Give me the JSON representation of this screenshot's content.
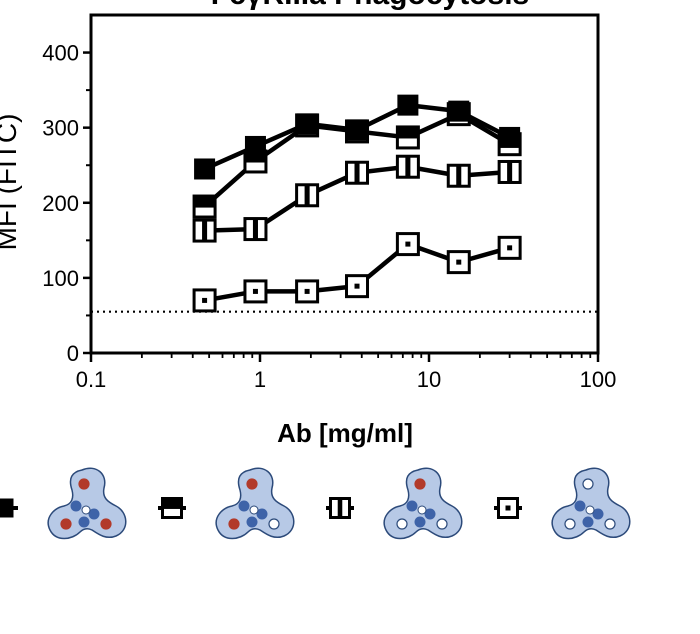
{
  "chart_data": {
    "type": "line",
    "title": "FcγRIIIa Phagocytosis",
    "xlabel": "Ab [mg/ml]",
    "ylabel": "MFI (FITC)",
    "x_scale": "log",
    "xlim": [
      0.1,
      100
    ],
    "ylim": [
      0,
      450
    ],
    "x_ticks": [
      0.1,
      1,
      10,
      100
    ],
    "x_tick_labels": [
      "0.1",
      "1",
      "10",
      "100"
    ],
    "y_ticks": [
      0,
      100,
      200,
      300,
      400
    ],
    "y_tick_labels": [
      "0",
      "100",
      "200",
      "300",
      "400"
    ],
    "baseline": 55,
    "grid": false,
    "series": [
      {
        "marker": "filled-square",
        "x": [
          0.47,
          0.94,
          1.9,
          3.75,
          7.5,
          15,
          30
        ],
        "y": [
          245,
          275,
          305,
          297,
          330,
          322,
          287
        ]
      },
      {
        "marker": "top-filled-square",
        "x": [
          0.47,
          0.94,
          1.9,
          3.75,
          7.5,
          15,
          30
        ],
        "y": [
          195,
          255,
          303,
          295,
          287,
          318,
          278
        ]
      },
      {
        "marker": "middle-filled-square",
        "x": [
          0.47,
          0.94,
          1.9,
          3.75,
          7.5,
          15,
          30
        ],
        "y": [
          163,
          165,
          210,
          240,
          248,
          236,
          241
        ]
      },
      {
        "marker": "open-square",
        "x": [
          0.47,
          0.94,
          1.9,
          3.75,
          7.5,
          15,
          30
        ],
        "y": [
          70,
          82,
          82,
          89,
          145,
          121,
          140
        ]
      }
    ],
    "legend": {
      "placement": "bottom",
      "entries": [
        {
          "marker": "filled-square",
          "red_dots": 3
        },
        {
          "marker": "top-filled-square",
          "red_dots": 2
        },
        {
          "marker": "middle-filled-square",
          "red_dots": 1
        },
        {
          "marker": "open-square",
          "red_dots": 0
        }
      ]
    },
    "colors": {
      "marker": "#000000",
      "molecule_fill": "#b7c9e6",
      "molecule_stroke": "#2c4a7a",
      "molecule_lobe": "#3e63a8",
      "glycan_red": "#b23a2a"
    }
  }
}
